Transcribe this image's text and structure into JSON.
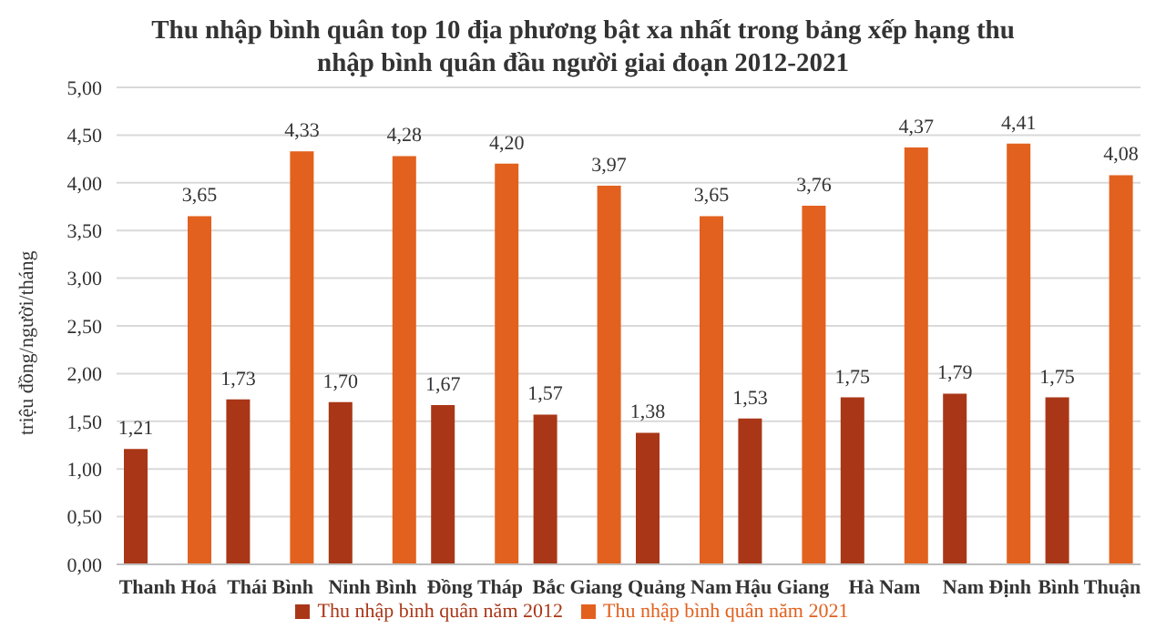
{
  "chart_data": {
    "type": "bar",
    "title": "Thu nhập bình quân top 10 địa phương bật xa nhất trong bảng xếp hạng thu nhập bình quân đầu người giai đoạn 2012-2021",
    "ylabel": "triệu đồng/người/tháng",
    "categories": [
      "Thanh Hoá",
      "Thái Bình",
      "Ninh Bình",
      "Đồng Tháp",
      "Bắc Giang",
      "Quảng Nam",
      "Hậu Giang",
      "Hà Nam",
      "Nam Định",
      "Bình Thuận"
    ],
    "series": [
      {
        "name": "Thu nhập bình quân năm 2012",
        "color": "#a93717",
        "values": [
          1.21,
          1.73,
          1.7,
          1.67,
          1.57,
          1.38,
          1.53,
          1.75,
          1.79,
          1.75
        ],
        "value_labels": [
          "1,21",
          "1,73",
          "1,70",
          "1,67",
          "1,57",
          "1,38",
          "1,53",
          "1,75",
          "1,79",
          "1,75"
        ]
      },
      {
        "name": "Thu nhập bình quân năm 2021",
        "color": "#e2611e",
        "values": [
          3.65,
          4.33,
          4.28,
          4.2,
          3.97,
          3.65,
          3.76,
          4.37,
          4.41,
          4.08
        ],
        "value_labels": [
          "3,65",
          "4,33",
          "4,28",
          "4,20",
          "3,97",
          "3,65",
          "3,76",
          "4,37",
          "4,41",
          "4,08"
        ]
      }
    ],
    "ylim": [
      0,
      5
    ],
    "yticks": [
      {
        "value": 0,
        "label": "0,00"
      },
      {
        "value": 0.5,
        "label": "0,50"
      },
      {
        "value": 1,
        "label": "1,00"
      },
      {
        "value": 1.5,
        "label": "1,50"
      },
      {
        "value": 2,
        "label": "2,00"
      },
      {
        "value": 2.5,
        "label": "2,50"
      },
      {
        "value": 3,
        "label": "3,00"
      },
      {
        "value": 3.5,
        "label": "3,50"
      },
      {
        "value": 4,
        "label": "4,00"
      },
      {
        "value": 4.5,
        "label": "4,50"
      },
      {
        "value": 5,
        "label": "5,00"
      }
    ],
    "grid": "y",
    "legend": "bottom"
  }
}
